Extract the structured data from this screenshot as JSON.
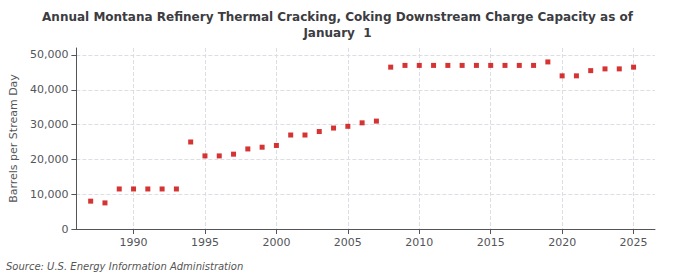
{
  "chart_data": {
    "type": "scatter",
    "title": "Annual Montana Refinery Thermal Cracking, Coking Downstream Charge Capacity as of\nJanuary  1",
    "ylabel": "Barrels per Stream Day",
    "annotations": [
      "Source: U.S. Energy Information Administration"
    ],
    "x": [
      1987,
      1988,
      1989,
      1990,
      1991,
      1992,
      1993,
      1994,
      1995,
      1996,
      1997,
      1998,
      1999,
      2000,
      2001,
      2002,
      2003,
      2004,
      2005,
      2006,
      2007,
      2008,
      2009,
      2010,
      2011,
      2012,
      2013,
      2014,
      2015,
      2016,
      2017,
      2018,
      2019,
      2020,
      2021,
      2022,
      2023,
      2024,
      2025
    ],
    "values": [
      8000,
      7500,
      11500,
      11500,
      11500,
      11500,
      11500,
      25000,
      21000,
      21000,
      21500,
      23000,
      23500,
      24000,
      27000,
      27000,
      28000,
      29000,
      29500,
      30500,
      31000,
      46500,
      47000,
      47000,
      47000,
      47000,
      47000,
      47000,
      47000,
      47000,
      47000,
      47000,
      48000,
      44000,
      44000,
      45500,
      46000,
      46000,
      46500
    ],
    "color": "#cc0000",
    "marker": "square",
    "xlim": [
      1986,
      2026.5
    ],
    "xticks": [
      1990,
      1995,
      2000,
      2005,
      2010,
      2015,
      2020,
      2025
    ],
    "ylim": [
      0,
      52000
    ],
    "yticks": [
      0,
      {
        "value": 10000,
        "label": "10,000"
      },
      {
        "value": 20000,
        "label": "20,000"
      },
      {
        "value": 30000,
        "label": "30,000"
      },
      {
        "value": 40000,
        "label": "40,000"
      },
      {
        "value": 50000,
        "label": "50,000"
      }
    ],
    "grid": true
  }
}
